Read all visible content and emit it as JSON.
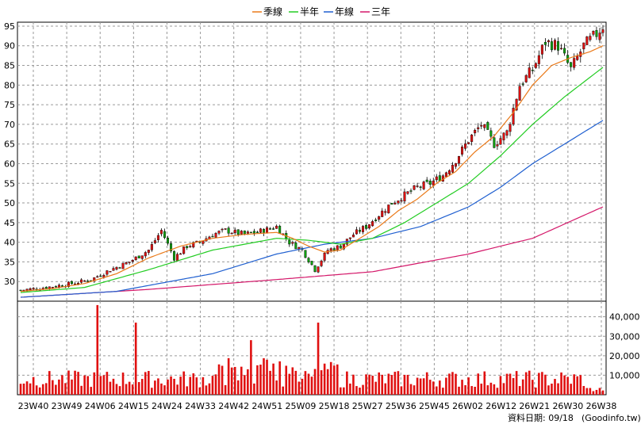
{
  "chart_data": {
    "type": "candlestick",
    "legend": [
      {
        "name": "季線",
        "color": "#ea7a1a"
      },
      {
        "name": "半年",
        "color": "#22cc22"
      },
      {
        "name": "年線",
        "color": "#1f5fd0"
      },
      {
        "name": "三年",
        "color": "#d4186a"
      }
    ],
    "price_axis": {
      "ylim": [
        25,
        96
      ],
      "ticks": [
        30,
        35,
        40,
        45,
        50,
        55,
        60,
        65,
        70,
        75,
        80,
        85,
        90,
        95
      ]
    },
    "volume_axis": {
      "ylim": [
        0,
        48000
      ],
      "ticks": [
        {
          "v": 10000,
          "label": "10,000"
        },
        {
          "v": 20000,
          "label": "20,000"
        },
        {
          "v": 30000,
          "label": "30,000"
        },
        {
          "v": 40000,
          "label": "40,000"
        }
      ]
    },
    "x_ticks": [
      "23W40",
      "23W49",
      "24W06",
      "24W15",
      "24W24",
      "24W33",
      "24W42",
      "24W51",
      "25W09",
      "25W18",
      "25W27",
      "25W36",
      "25W45",
      "26W02",
      "26W12",
      "26W21",
      "26W30",
      "26W38"
    ],
    "close_points": [
      [
        0,
        27.8
      ],
      [
        8,
        28.5
      ],
      [
        16,
        29.5
      ],
      [
        22,
        30.5
      ],
      [
        28,
        33
      ],
      [
        34,
        35
      ],
      [
        40,
        38
      ],
      [
        44,
        43
      ],
      [
        48,
        36
      ],
      [
        52,
        39
      ],
      [
        56,
        40
      ],
      [
        60,
        42
      ],
      [
        64,
        43
      ],
      [
        70,
        42
      ],
      [
        76,
        43
      ],
      [
        80,
        44
      ],
      [
        84,
        40
      ],
      [
        88,
        38
      ],
      [
        92,
        33
      ],
      [
        96,
        38
      ],
      [
        100,
        39
      ],
      [
        104,
        42
      ],
      [
        108,
        44
      ],
      [
        112,
        47
      ],
      [
        116,
        50
      ],
      [
        120,
        52
      ],
      [
        124,
        54
      ],
      [
        128,
        55
      ],
      [
        132,
        57
      ],
      [
        136,
        61
      ],
      [
        140,
        66
      ],
      [
        144,
        70
      ],
      [
        148,
        65
      ],
      [
        152,
        68
      ],
      [
        156,
        80
      ],
      [
        160,
        84
      ],
      [
        164,
        91
      ],
      [
        168,
        90
      ],
      [
        172,
        84
      ],
      [
        176,
        90
      ],
      [
        180,
        93
      ],
      [
        182,
        95
      ]
    ],
    "ma_quarter": [
      [
        0,
        27.5
      ],
      [
        10,
        28.2
      ],
      [
        20,
        29.5
      ],
      [
        30,
        32
      ],
      [
        40,
        36
      ],
      [
        50,
        39
      ],
      [
        60,
        41
      ],
      [
        70,
        42
      ],
      [
        80,
        42.5
      ],
      [
        85,
        41
      ],
      [
        90,
        39
      ],
      [
        95,
        37.5
      ],
      [
        100,
        38
      ],
      [
        106,
        41
      ],
      [
        112,
        44
      ],
      [
        118,
        48
      ],
      [
        124,
        51
      ],
      [
        130,
        55
      ],
      [
        136,
        58
      ],
      [
        142,
        63
      ],
      [
        148,
        67
      ],
      [
        154,
        73
      ],
      [
        160,
        80
      ],
      [
        166,
        85
      ],
      [
        172,
        87
      ],
      [
        178,
        88.5
      ],
      [
        182,
        90
      ]
    ],
    "ma_half": [
      [
        0,
        27.2
      ],
      [
        20,
        28.5
      ],
      [
        40,
        33
      ],
      [
        60,
        38
      ],
      [
        80,
        41
      ],
      [
        90,
        40.5
      ],
      [
        100,
        39.5
      ],
      [
        110,
        41
      ],
      [
        120,
        45
      ],
      [
        130,
        50
      ],
      [
        140,
        55
      ],
      [
        150,
        62
      ],
      [
        160,
        70
      ],
      [
        170,
        77
      ],
      [
        182,
        84.5
      ]
    ],
    "ma_year": [
      [
        0,
        26
      ],
      [
        30,
        27.5
      ],
      [
        60,
        32
      ],
      [
        80,
        37
      ],
      [
        95,
        39.5
      ],
      [
        110,
        41
      ],
      [
        125,
        44
      ],
      [
        140,
        49
      ],
      [
        150,
        54
      ],
      [
        160,
        60
      ],
      [
        170,
        65
      ],
      [
        182,
        71
      ]
    ],
    "ma_3year": [
      [
        0,
        26
      ],
      [
        40,
        28
      ],
      [
        80,
        30.5
      ],
      [
        110,
        32.5
      ],
      [
        140,
        37
      ],
      [
        160,
        41
      ],
      [
        182,
        49
      ]
    ],
    "volume_spikes": [
      [
        24,
        46000
      ],
      [
        36,
        37000
      ],
      [
        72,
        28000
      ],
      [
        93,
        37000
      ]
    ],
    "footer_label": "資料日期: 09/18",
    "footer_source": "(Goodinfo.tw)"
  }
}
